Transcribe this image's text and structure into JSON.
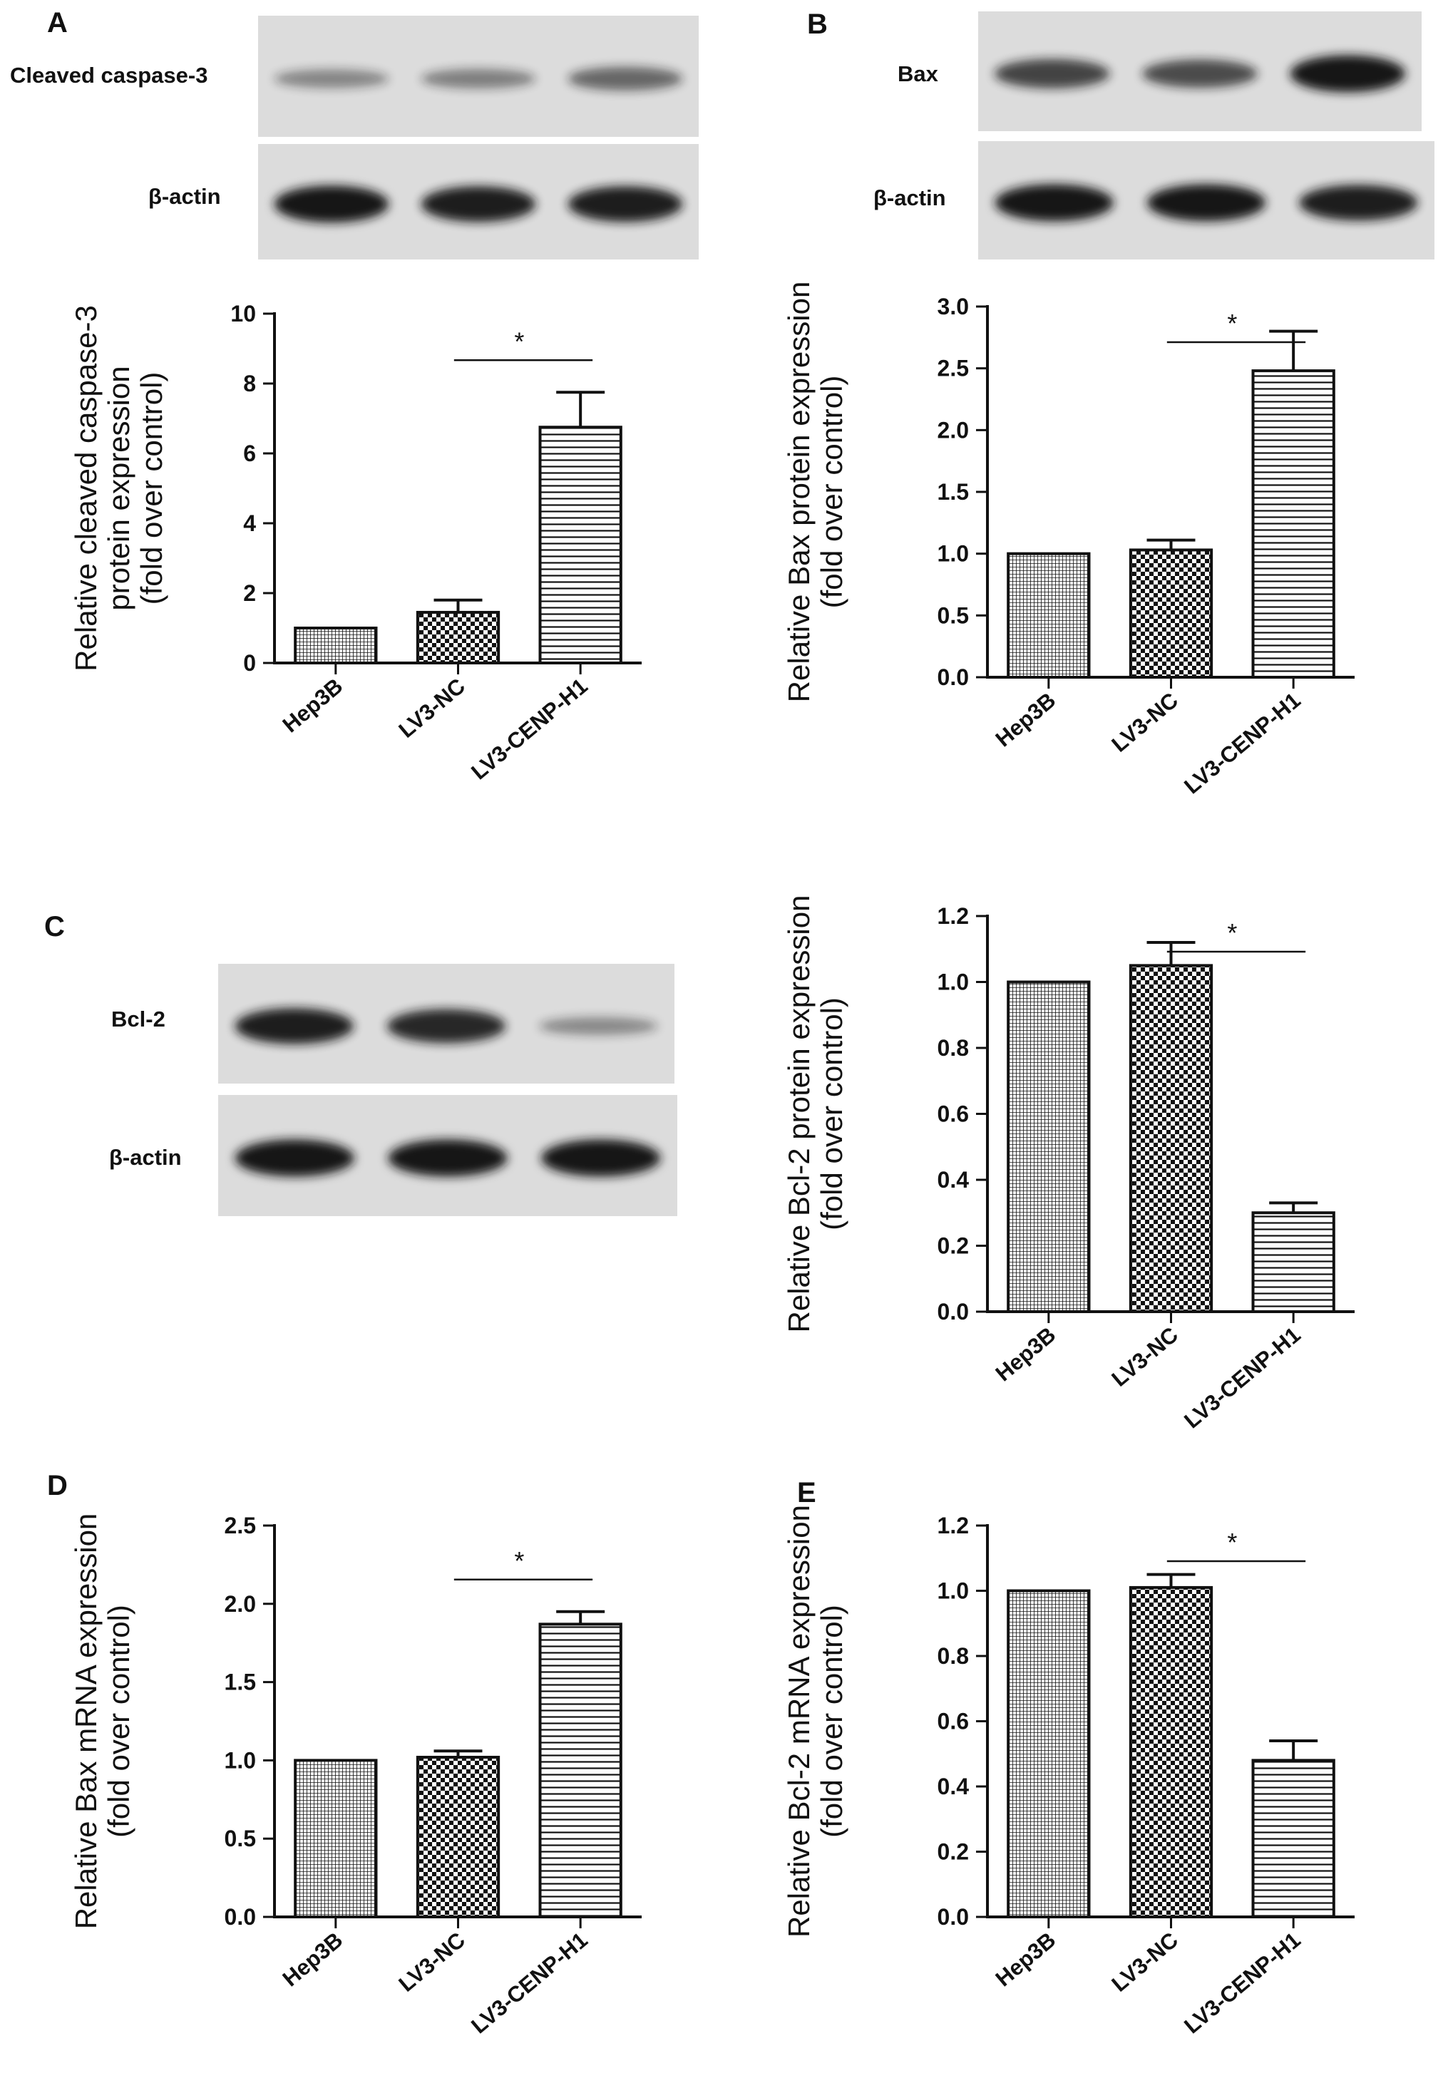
{
  "panels": {
    "A": {
      "label": "A",
      "blots": [
        {
          "name": "Cleaved caspase-3",
          "intensities": [
            0.28,
            0.32,
            0.48
          ]
        },
        {
          "name": "β-actin",
          "intensities": [
            1,
            0.95,
            0.95
          ]
        }
      ]
    },
    "B": {
      "label": "B",
      "blots": [
        {
          "name": "Bax",
          "intensities": [
            0.7,
            0.65,
            1
          ]
        },
        {
          "name": "β-actin",
          "intensities": [
            1,
            1,
            0.95
          ]
        }
      ]
    },
    "C": {
      "label": "C",
      "blots": [
        {
          "name": "Bcl-2",
          "intensities": [
            0.95,
            0.88,
            0.25
          ]
        },
        {
          "name": "β-actin",
          "intensities": [
            1,
            1,
            1
          ]
        }
      ]
    },
    "D": {
      "label": "D"
    },
    "E": {
      "label": "E"
    }
  },
  "colors": {
    "bar_stroke": "#111111",
    "pattern_ink": "#111111",
    "blot_bg": "#dcdcdc",
    "band": "#151515"
  },
  "chart_data": [
    {
      "id": "A",
      "type": "bar",
      "categories": [
        "Hep3B",
        "LV3-NC",
        "LV3-CENP-H1"
      ],
      "values": [
        1.0,
        1.45,
        6.75
      ],
      "errors": [
        0,
        0.35,
        1.0
      ],
      "ylim": [
        0,
        10
      ],
      "yticks": [
        0,
        2,
        4,
        6,
        8,
        10
      ],
      "ylabel_lines": [
        "Relative cleaved caspase-3",
        "protein expression",
        "(fold over control)"
      ],
      "significance": {
        "from": 1,
        "to": 2,
        "label": "*"
      },
      "patterns": [
        "grid",
        "checker",
        "hstripe"
      ]
    },
    {
      "id": "B",
      "type": "bar",
      "categories": [
        "Hep3B",
        "LV3-NC",
        "LV3-CENP-H1"
      ],
      "values": [
        1.0,
        1.03,
        2.48
      ],
      "errors": [
        0,
        0.08,
        0.32
      ],
      "ylim": [
        0,
        3
      ],
      "yticks": [
        0.0,
        0.5,
        1.0,
        1.5,
        2.0,
        2.5,
        3.0
      ],
      "ytick_decimals": 1,
      "ylabel_lines": [
        "Relative Bax protein expression",
        "(fold over control)"
      ],
      "significance": {
        "from": 1,
        "to": 2,
        "label": "*"
      },
      "patterns": [
        "grid",
        "checker",
        "hstripe"
      ]
    },
    {
      "id": "C",
      "type": "bar",
      "categories": [
        "Hep3B",
        "LV3-NC",
        "LV3-CENP-H1"
      ],
      "values": [
        1.0,
        1.05,
        0.3
      ],
      "errors": [
        0,
        0.07,
        0.03
      ],
      "ylim": [
        0,
        1.2
      ],
      "yticks": [
        0.0,
        0.2,
        0.4,
        0.6,
        0.8,
        1.0,
        1.2
      ],
      "ytick_decimals": 1,
      "ylabel_lines": [
        "Relative Bcl-2 protein expression",
        "(fold over control)"
      ],
      "significance": {
        "from": 1,
        "to": 2,
        "label": "*"
      },
      "patterns": [
        "grid",
        "checker",
        "hstripe"
      ]
    },
    {
      "id": "D",
      "type": "bar",
      "categories": [
        "Hep3B",
        "LV3-NC",
        "LV3-CENP-H1"
      ],
      "values": [
        1.0,
        1.02,
        1.87
      ],
      "errors": [
        0,
        0.04,
        0.08
      ],
      "ylim": [
        0,
        2.5
      ],
      "yticks": [
        0.0,
        0.5,
        1.0,
        1.5,
        2.0,
        2.5
      ],
      "ytick_decimals": 1,
      "ylabel_lines": [
        "Relative Bax mRNA expression",
        "(fold over control)"
      ],
      "significance": {
        "from": 1,
        "to": 2,
        "label": "*"
      },
      "patterns": [
        "grid",
        "checker",
        "hstripe"
      ]
    },
    {
      "id": "E",
      "type": "bar",
      "categories": [
        "Hep3B",
        "LV3-NC",
        "LV3-CENP-H1"
      ],
      "values": [
        1.0,
        1.01,
        0.48
      ],
      "errors": [
        0,
        0.04,
        0.06
      ],
      "ylim": [
        0,
        1.2
      ],
      "yticks": [
        0.0,
        0.2,
        0.4,
        0.6,
        0.8,
        1.0,
        1.2
      ],
      "ytick_decimals": 1,
      "ylabel_lines": [
        "Relative Bcl-2 mRNA  expression",
        "(fold over control)"
      ],
      "significance": {
        "from": 1,
        "to": 2,
        "label": "*"
      },
      "patterns": [
        "grid",
        "checker",
        "hstripe"
      ]
    }
  ]
}
